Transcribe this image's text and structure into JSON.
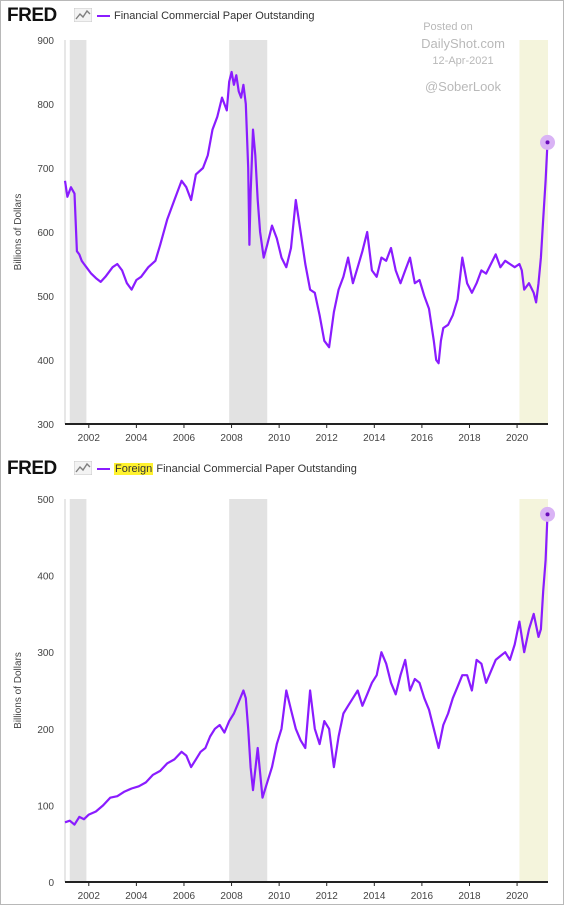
{
  "logo": "FRED",
  "watermark": {
    "posted": "Posted on",
    "site": "DailyShot.com",
    "date": "12-Apr-2021",
    "handle": "@SoberLook"
  },
  "chart_data": [
    {
      "type": "line",
      "title": "",
      "series": [
        {
          "name": "Financial Commercial Paper Outstanding",
          "color": "#8a1cff"
        }
      ],
      "ylabel": "Billions of Dollars",
      "xlabel": "",
      "xlim": [
        2001.0,
        2021.3
      ],
      "ylim": [
        300,
        900
      ],
      "yticks": [
        300,
        400,
        500,
        600,
        700,
        800,
        900
      ],
      "xticks": [
        "2002",
        "2004",
        "2006",
        "2008",
        "2010",
        "2012",
        "2014",
        "2016",
        "2018",
        "2020"
      ],
      "recessions": [
        [
          2001.2,
          2001.9
        ],
        [
          2007.9,
          2009.5
        ],
        [
          2020.1,
          2021.3
        ]
      ],
      "recession_colors": [
        "#e2e2e2",
        "#e2e2e2",
        "#f4f4dc"
      ],
      "x": [
        2001.0,
        2001.1,
        2001.25,
        2001.4,
        2001.5,
        2001.6,
        2001.7,
        2001.8,
        2001.9,
        2002.1,
        2002.3,
        2002.5,
        2002.7,
        2003.0,
        2003.2,
        2003.4,
        2003.6,
        2003.8,
        2004.0,
        2004.2,
        2004.5,
        2004.8,
        2005.0,
        2005.3,
        2005.6,
        2005.9,
        2006.1,
        2006.3,
        2006.5,
        2006.8,
        2007.0,
        2007.2,
        2007.4,
        2007.6,
        2007.8,
        2007.9,
        2008.0,
        2008.1,
        2008.2,
        2008.3,
        2008.4,
        2008.5,
        2008.6,
        2008.7,
        2008.75,
        2008.8,
        2008.9,
        2009.0,
        2009.1,
        2009.2,
        2009.35,
        2009.5,
        2009.7,
        2009.9,
        2010.1,
        2010.3,
        2010.5,
        2010.7,
        2010.9,
        2011.1,
        2011.3,
        2011.5,
        2011.7,
        2011.9,
        2012.1,
        2012.3,
        2012.5,
        2012.7,
        2012.9,
        2013.1,
        2013.3,
        2013.5,
        2013.7,
        2013.9,
        2014.1,
        2014.3,
        2014.5,
        2014.7,
        2014.9,
        2015.1,
        2015.3,
        2015.5,
        2015.7,
        2015.9,
        2016.1,
        2016.3,
        2016.5,
        2016.6,
        2016.7,
        2016.8,
        2016.9,
        2017.1,
        2017.3,
        2017.5,
        2017.7,
        2017.9,
        2018.1,
        2018.3,
        2018.5,
        2018.7,
        2018.9,
        2019.1,
        2019.3,
        2019.5,
        2019.7,
        2019.9,
        2020.1,
        2020.2,
        2020.3,
        2020.5,
        2020.7,
        2020.8,
        2020.9,
        2021.0,
        2021.1,
        2021.2,
        2021.28
      ],
      "values": [
        680,
        655,
        670,
        660,
        570,
        565,
        555,
        550,
        545,
        535,
        528,
        522,
        530,
        545,
        550,
        540,
        520,
        510,
        525,
        530,
        545,
        555,
        580,
        620,
        650,
        680,
        670,
        650,
        690,
        700,
        720,
        760,
        780,
        810,
        790,
        835,
        850,
        830,
        845,
        820,
        810,
        830,
        800,
        700,
        580,
        660,
        760,
        720,
        650,
        600,
        560,
        580,
        610,
        590,
        560,
        545,
        575,
        650,
        600,
        550,
        510,
        505,
        470,
        430,
        420,
        475,
        510,
        530,
        560,
        520,
        545,
        570,
        600,
        540,
        530,
        560,
        555,
        575,
        540,
        520,
        540,
        560,
        520,
        525,
        500,
        480,
        430,
        400,
        395,
        430,
        450,
        455,
        470,
        495,
        560,
        520,
        505,
        520,
        540,
        535,
        550,
        565,
        545,
        555,
        550,
        545,
        550,
        540,
        510,
        520,
        505,
        490,
        520,
        560,
        620,
        680,
        740
      ]
    },
    {
      "type": "line",
      "title": "",
      "series": [
        {
          "name": "Financial Commercial Paper Outstanding",
          "color": "#8a1cff",
          "highlight": "Foreign"
        }
      ],
      "ylabel": "Billions of Dollars",
      "xlabel": "",
      "xlim": [
        2001.0,
        2021.3
      ],
      "ylim": [
        0,
        500
      ],
      "yticks": [
        0,
        100,
        200,
        300,
        400,
        500
      ],
      "xticks": [
        "2002",
        "2004",
        "2006",
        "2008",
        "2010",
        "2012",
        "2014",
        "2016",
        "2018",
        "2020"
      ],
      "recessions": [
        [
          2001.2,
          2001.9
        ],
        [
          2007.9,
          2009.5
        ],
        [
          2020.1,
          2021.3
        ]
      ],
      "recession_colors": [
        "#e2e2e2",
        "#e2e2e2",
        "#f4f4dc"
      ],
      "x": [
        2001.0,
        2001.2,
        2001.4,
        2001.6,
        2001.8,
        2002.0,
        2002.3,
        2002.6,
        2002.9,
        2003.2,
        2003.5,
        2003.8,
        2004.1,
        2004.4,
        2004.7,
        2005.0,
        2005.3,
        2005.6,
        2005.9,
        2006.1,
        2006.3,
        2006.5,
        2006.7,
        2006.9,
        2007.1,
        2007.3,
        2007.5,
        2007.7,
        2007.9,
        2008.1,
        2008.3,
        2008.5,
        2008.6,
        2008.7,
        2008.8,
        2008.9,
        2009.1,
        2009.3,
        2009.5,
        2009.7,
        2009.9,
        2010.1,
        2010.3,
        2010.5,
        2010.7,
        2010.9,
        2011.1,
        2011.3,
        2011.5,
        2011.7,
        2011.9,
        2012.1,
        2012.3,
        2012.5,
        2012.7,
        2012.9,
        2013.1,
        2013.3,
        2013.5,
        2013.7,
        2013.9,
        2014.1,
        2014.3,
        2014.5,
        2014.7,
        2014.9,
        2015.1,
        2015.3,
        2015.5,
        2015.7,
        2015.9,
        2016.1,
        2016.3,
        2016.5,
        2016.7,
        2016.9,
        2017.1,
        2017.3,
        2017.5,
        2017.7,
        2017.9,
        2018.1,
        2018.3,
        2018.5,
        2018.7,
        2018.9,
        2019.1,
        2019.3,
        2019.5,
        2019.7,
        2019.9,
        2020.1,
        2020.3,
        2020.5,
        2020.7,
        2020.9,
        2021.0,
        2021.1,
        2021.2,
        2021.28
      ],
      "values": [
        78,
        80,
        75,
        85,
        82,
        88,
        92,
        100,
        110,
        112,
        118,
        122,
        125,
        130,
        140,
        145,
        155,
        160,
        170,
        165,
        150,
        160,
        170,
        175,
        190,
        200,
        205,
        195,
        210,
        220,
        235,
        250,
        240,
        200,
        150,
        120,
        175,
        110,
        130,
        150,
        180,
        200,
        250,
        225,
        200,
        185,
        175,
        250,
        200,
        180,
        210,
        200,
        150,
        190,
        220,
        230,
        240,
        250,
        230,
        245,
        260,
        270,
        300,
        285,
        260,
        245,
        270,
        290,
        250,
        265,
        260,
        240,
        225,
        200,
        175,
        205,
        220,
        240,
        255,
        270,
        270,
        250,
        290,
        285,
        260,
        275,
        290,
        295,
        300,
        290,
        310,
        340,
        300,
        330,
        350,
        320,
        330,
        380,
        420,
        480
      ]
    }
  ]
}
